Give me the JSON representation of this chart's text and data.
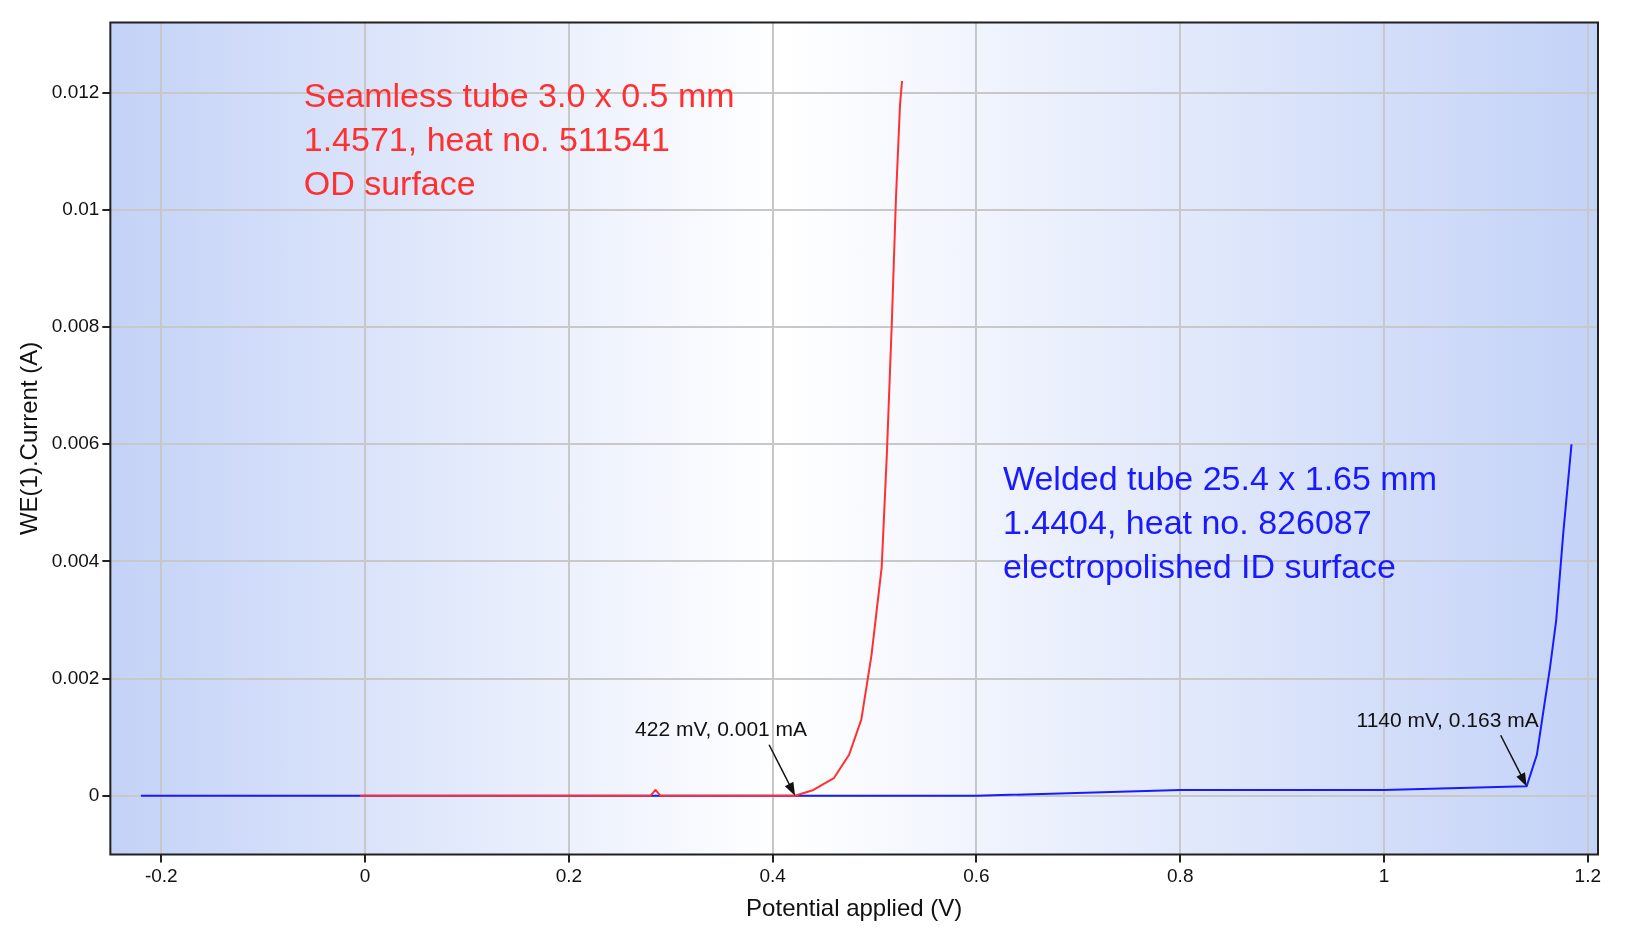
{
  "chart_data": {
    "type": "line",
    "xlabel": "Potential applied (V)",
    "ylabel": "WE(1).Current (A)",
    "xlim": [
      -0.25,
      1.21
    ],
    "xticks": [
      -0.2,
      0,
      0.2,
      0.4,
      0.6,
      0.8,
      1,
      1.2
    ],
    "ylim": [
      -0.001,
      0.0132
    ],
    "yticks": [
      0,
      0.002,
      0.004,
      0.006,
      0.008,
      0.01,
      0.012
    ],
    "grid": true,
    "legend": false,
    "marker": "none",
    "line_style": "solid",
    "series": [
      {
        "name": "Seamless tube 3.0 x 0.5 mm\n1.4571, heat no. 511541\nOD surface",
        "color": "#ff3030",
        "x": [
          -0.005,
          0.1,
          0.2,
          0.28,
          0.285,
          0.29,
          0.35,
          0.422,
          0.44,
          0.46,
          0.475,
          0.487,
          0.497,
          0.507,
          0.512,
          0.517,
          0.521,
          0.525,
          0.527
        ],
        "values": [
          0,
          0,
          0,
          0,
          0.0001,
          0,
          0,
          0,
          0.0001,
          0.0003,
          0.0007,
          0.0013,
          0.0024,
          0.0039,
          0.0058,
          0.0081,
          0.0102,
          0.0118,
          0.0122
        ]
      },
      {
        "name": "Welded tube 25.4 x 1.65 mm\n1.4404, heat no. 826087\nelectropolished ID surface",
        "color": "#1a1aff",
        "x": [
          -0.22,
          0,
          0.2,
          0.422,
          0.6,
          0.8,
          1,
          1.14,
          1.15,
          1.156,
          1.163,
          1.169,
          1.176,
          1.184
        ],
        "values": [
          0,
          0,
          0,
          0,
          0,
          0.0001,
          0.0001,
          0.000163,
          0.0007,
          0.0014,
          0.0022,
          0.003,
          0.0045,
          0.006
        ]
      }
    ],
    "annotations": [
      {
        "text": "422 mV, 0.001 mA",
        "x": 0.422,
        "y": 1e-06
      },
      {
        "text": "1140 mV, 0.163 mA",
        "x": 1.14,
        "y": 0.000163
      }
    ]
  }
}
